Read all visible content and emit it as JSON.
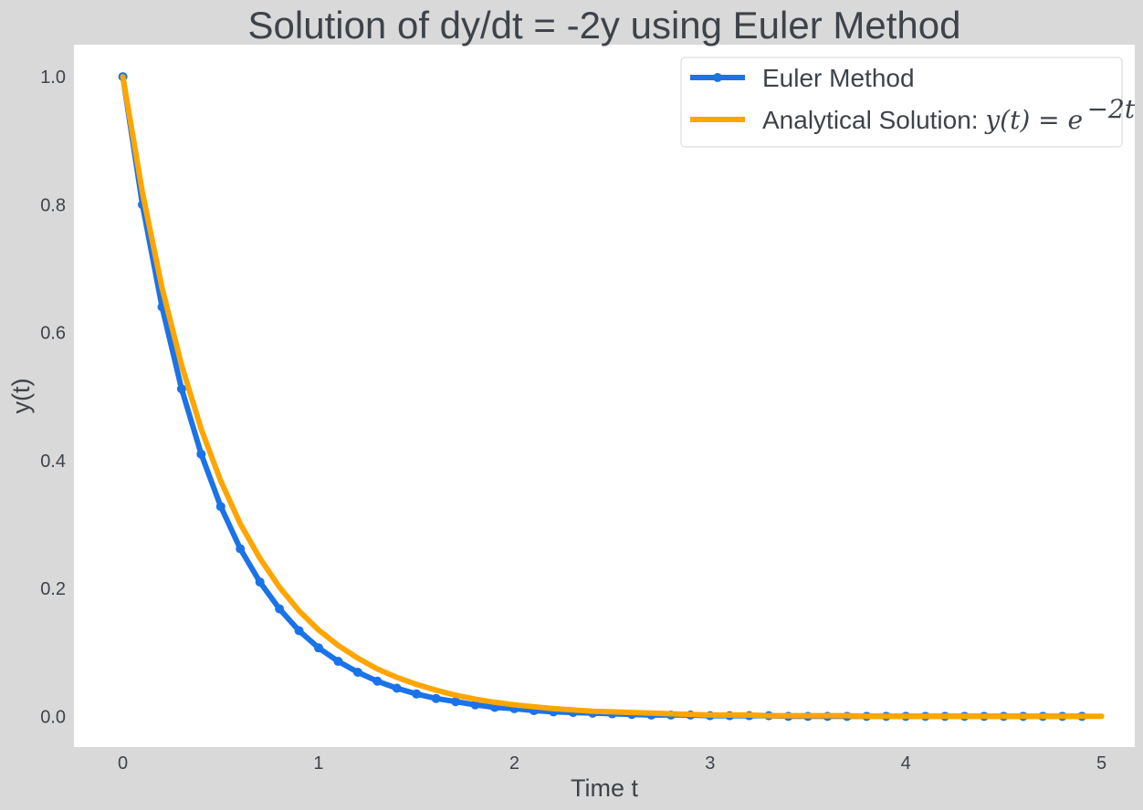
{
  "chart_data": {
    "type": "line",
    "title": "Solution of dy/dt = -2y using Euler Method",
    "xlabel": "Time t",
    "ylabel": "y(t)",
    "xlim": [
      -0.25,
      5.17
    ],
    "ylim": [
      -0.048,
      1.05
    ],
    "xticks": [
      0,
      1,
      2,
      3,
      4,
      5
    ],
    "xtick_labels": [
      "0",
      "1",
      "2",
      "3",
      "4",
      "5"
    ],
    "yticks": [
      0.0,
      0.2,
      0.4,
      0.6,
      0.8,
      1.0
    ],
    "ytick_labels": [
      "0.0",
      "0.2",
      "0.4",
      "0.6",
      "0.8",
      "1.0"
    ],
    "grid": false,
    "legend_position": "top-right",
    "series": [
      {
        "name": "Euler Method",
        "color": "#1a73e8",
        "marker": "circle",
        "x": [
          0.0,
          0.1,
          0.2,
          0.3,
          0.4,
          0.5,
          0.6,
          0.7,
          0.8,
          0.9,
          1.0,
          1.1,
          1.2,
          1.3,
          1.4,
          1.5,
          1.6,
          1.7,
          1.8,
          1.9,
          2.0,
          2.1,
          2.2,
          2.3,
          2.4,
          2.5,
          2.6,
          2.7,
          2.8,
          2.9,
          3.0,
          3.1,
          3.2,
          3.3,
          3.4,
          3.5,
          3.6,
          3.7,
          3.8,
          3.9,
          4.0,
          4.1,
          4.2,
          4.3,
          4.4,
          4.5,
          4.6,
          4.7,
          4.8,
          4.9
        ],
        "y": [
          1.0,
          0.8,
          0.64,
          0.512,
          0.41,
          0.328,
          0.262,
          0.21,
          0.168,
          0.134,
          0.107,
          0.086,
          0.069,
          0.055,
          0.044,
          0.035,
          0.028,
          0.023,
          0.018,
          0.014,
          0.012,
          0.009,
          0.007,
          0.006,
          0.005,
          0.004,
          0.003,
          0.002,
          0.002,
          0.002,
          0.001,
          0.001,
          0.001,
          0.001,
          0.0,
          0.0,
          0.0,
          0.0,
          0.0,
          0.0,
          0.0,
          0.0,
          0.0,
          0.0,
          0.0,
          0.0,
          0.0,
          0.0,
          0.0,
          0.0
        ]
      },
      {
        "name": "Analytical Solution: ",
        "name_math": "y(t) = e",
        "name_sup": "−2t",
        "color": "#ffa500",
        "x": [
          0.0,
          0.1,
          0.2,
          0.3,
          0.4,
          0.5,
          0.6,
          0.7,
          0.8,
          0.9,
          1.0,
          1.1,
          1.2,
          1.3,
          1.4,
          1.5,
          1.6,
          1.7,
          1.8,
          1.9,
          2.0,
          2.1,
          2.2,
          2.3,
          2.4,
          2.5,
          2.6,
          2.7,
          2.8,
          2.9,
          3.0,
          3.1,
          3.2,
          3.3,
          3.4,
          3.5,
          3.6,
          3.7,
          3.8,
          3.9,
          4.0,
          4.1,
          4.2,
          4.3,
          4.4,
          4.5,
          4.6,
          4.7,
          4.8,
          4.9,
          5.0
        ],
        "y": [
          1.0,
          0.819,
          0.67,
          0.549,
          0.449,
          0.368,
          0.301,
          0.247,
          0.202,
          0.165,
          0.135,
          0.111,
          0.091,
          0.074,
          0.061,
          0.05,
          0.041,
          0.033,
          0.027,
          0.022,
          0.018,
          0.015,
          0.012,
          0.01,
          0.008,
          0.007,
          0.006,
          0.005,
          0.004,
          0.003,
          0.002,
          0.002,
          0.002,
          0.001,
          0.001,
          0.001,
          0.001,
          0.001,
          0.0,
          0.0,
          0.0,
          0.0,
          0.0,
          0.0,
          0.0,
          0.0,
          0.0,
          0.0,
          0.0,
          0.0,
          0.0
        ]
      }
    ]
  }
}
